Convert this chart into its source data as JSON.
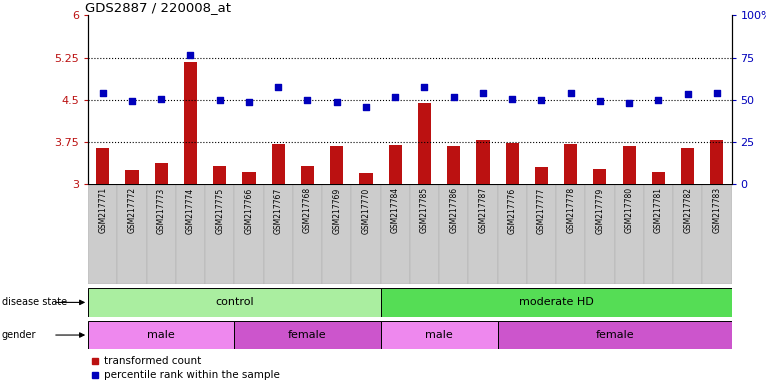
{
  "title": "GDS2887 / 220008_at",
  "samples": [
    "GSM217771",
    "GSM217772",
    "GSM217773",
    "GSM217774",
    "GSM217775",
    "GSM217766",
    "GSM217767",
    "GSM217768",
    "GSM217769",
    "GSM217770",
    "GSM217784",
    "GSM217785",
    "GSM217786",
    "GSM217787",
    "GSM217776",
    "GSM217777",
    "GSM217778",
    "GSM217779",
    "GSM217780",
    "GSM217781",
    "GSM217782",
    "GSM217783"
  ],
  "bar_values": [
    3.65,
    3.25,
    3.38,
    5.18,
    3.32,
    3.22,
    3.72,
    3.32,
    3.68,
    3.2,
    3.7,
    4.45,
    3.68,
    3.78,
    3.73,
    3.3,
    3.72,
    3.28,
    3.68,
    3.22,
    3.65,
    3.78
  ],
  "dot_values": [
    4.62,
    4.48,
    4.52,
    5.3,
    4.5,
    4.46,
    4.72,
    4.5,
    4.47,
    4.38,
    4.55,
    4.72,
    4.55,
    4.62,
    4.52,
    4.5,
    4.62,
    4.48,
    4.45,
    4.5,
    4.6,
    4.62
  ],
  "ylim_left": [
    3.0,
    6.0
  ],
  "ylim_right": [
    0,
    100
  ],
  "yticks_left": [
    3.0,
    3.75,
    4.5,
    5.25,
    6.0
  ],
  "ytick_labels_left": [
    "3",
    "3.75",
    "4.5",
    "5.25",
    "6"
  ],
  "yticks_right": [
    0,
    25,
    50,
    75,
    100
  ],
  "ytick_labels_right": [
    "0",
    "25",
    "50",
    "75",
    "100%"
  ],
  "hlines": [
    3.75,
    4.5,
    5.25
  ],
  "bar_color": "#bb1111",
  "dot_color": "#0000bb",
  "disease_groups": [
    {
      "label": "control",
      "start": 0,
      "end": 10,
      "color": "#aaeea0"
    },
    {
      "label": "moderate HD",
      "start": 10,
      "end": 22,
      "color": "#55dd55"
    }
  ],
  "gender_groups": [
    {
      "label": "male",
      "start": 0,
      "end": 5,
      "color": "#ee88ee"
    },
    {
      "label": "female",
      "start": 5,
      "end": 10,
      "color": "#cc55cc"
    },
    {
      "label": "male",
      "start": 10,
      "end": 14,
      "color": "#ee88ee"
    },
    {
      "label": "female",
      "start": 14,
      "end": 22,
      "color": "#cc55cc"
    }
  ],
  "bar_bottom": 3.0,
  "bar_width": 0.45,
  "dot_size": 22
}
